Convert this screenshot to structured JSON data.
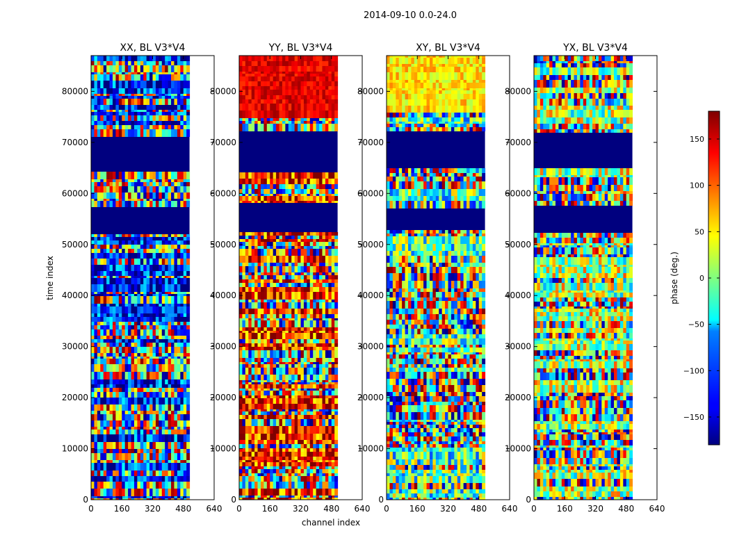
{
  "figure": {
    "suptitle": "2014-09-10 0.0-24.0",
    "xlabel": "channel index",
    "ylabel": "time index"
  },
  "colorbar": {
    "label": "phase (deg.)",
    "ticks": [
      "150",
      "100",
      "50",
      "0",
      "−50",
      "−100",
      "−150"
    ],
    "tick_values": [
      150,
      100,
      50,
      0,
      -50,
      -100,
      -150
    ],
    "range": [
      -180,
      180
    ],
    "colormap": "jet"
  },
  "chart_data": [
    {
      "type": "heatmap",
      "title": "XX, BL V3*V4",
      "xlim": [
        0,
        640
      ],
      "ylim": [
        0,
        87000
      ],
      "data_extent_x": [
        0,
        512
      ],
      "x_ticks": [
        "0",
        "160",
        "320",
        "480",
        "640"
      ],
      "x_tick_values": [
        0,
        160,
        320,
        480,
        640
      ],
      "y_ticks": [
        "0",
        "10000",
        "20000",
        "30000",
        "40000",
        "50000",
        "60000",
        "70000",
        "80000"
      ],
      "y_tick_values": [
        0,
        10000,
        20000,
        30000,
        40000,
        50000,
        60000,
        70000,
        80000
      ],
      "flagged_time_ranges": [
        [
          53000,
          58500
        ],
        [
          65000,
          72500
        ]
      ],
      "value_unit": "phase (deg.)"
    },
    {
      "type": "heatmap",
      "title": "YY, BL V3*V4",
      "xlim": [
        0,
        640
      ],
      "ylim": [
        0,
        87000
      ],
      "data_extent_x": [
        0,
        512
      ],
      "x_ticks": [
        "0",
        "160",
        "320",
        "480",
        "640"
      ],
      "x_tick_values": [
        0,
        160,
        320,
        480,
        640
      ],
      "y_ticks": [
        "0",
        "10000",
        "20000",
        "30000",
        "40000",
        "50000",
        "60000",
        "70000",
        "80000"
      ],
      "y_tick_values": [
        0,
        10000,
        20000,
        30000,
        40000,
        50000,
        60000,
        70000,
        80000
      ],
      "flagged_time_ranges": [
        [
          53000,
          58500
        ],
        [
          65000,
          72500
        ]
      ],
      "value_unit": "phase (deg.)"
    },
    {
      "type": "heatmap",
      "title": "XY, BL V3*V4",
      "xlim": [
        0,
        640
      ],
      "ylim": [
        0,
        87000
      ],
      "data_extent_x": [
        0,
        512
      ],
      "x_ticks": [
        "0",
        "160",
        "320",
        "480",
        "640"
      ],
      "x_tick_values": [
        0,
        160,
        320,
        480,
        640
      ],
      "y_ticks": [
        "0",
        "10000",
        "20000",
        "30000",
        "40000",
        "50000",
        "60000",
        "70000",
        "80000"
      ],
      "y_tick_values": [
        0,
        10000,
        20000,
        30000,
        40000,
        50000,
        60000,
        70000,
        80000
      ],
      "flagged_time_ranges": [
        [
          53000,
          58500
        ],
        [
          65000,
          72500
        ]
      ],
      "value_unit": "phase (deg.)"
    },
    {
      "type": "heatmap",
      "title": "YX, BL V3*V4",
      "xlim": [
        0,
        640
      ],
      "ylim": [
        0,
        87000
      ],
      "data_extent_x": [
        0,
        512
      ],
      "x_ticks": [
        "0",
        "160",
        "320",
        "480",
        "640"
      ],
      "x_tick_values": [
        0,
        160,
        320,
        480,
        640
      ],
      "y_ticks": [
        "0",
        "10000",
        "20000",
        "30000",
        "40000",
        "50000",
        "60000",
        "70000",
        "80000"
      ],
      "y_tick_values": [
        0,
        10000,
        20000,
        30000,
        40000,
        50000,
        60000,
        70000,
        80000
      ],
      "flagged_time_ranges": [
        [
          53000,
          58500
        ],
        [
          65000,
          72500
        ]
      ],
      "value_unit": "phase (deg.)"
    }
  ]
}
